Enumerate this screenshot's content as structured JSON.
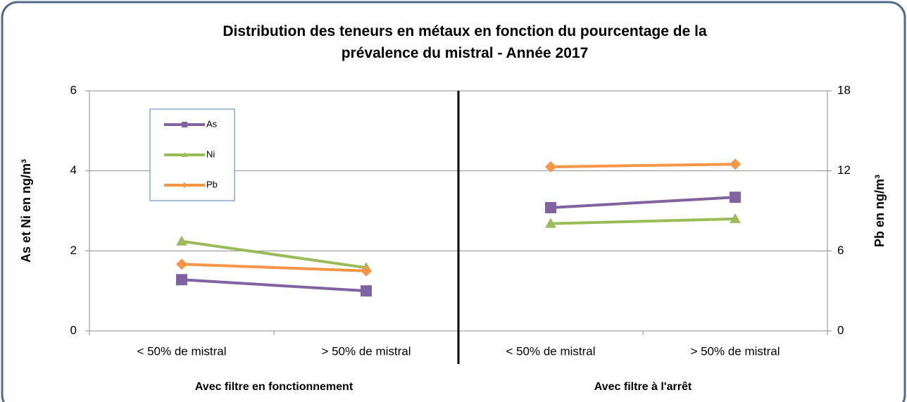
{
  "chart_data": {
    "type": "line",
    "title": "Distribution des teneurs en métaux en fonction du pourcentage de la prévalence du mistral - Année 2017",
    "groups": [
      {
        "label": "Avec filtre en fonctionnement",
        "categories": [
          "< 50% de mistral",
          "> 50% de mistral"
        ]
      },
      {
        "label": "Avec filtre à l'arrêt",
        "categories": [
          "< 50% de mistral",
          "> 50% de mistral"
        ]
      }
    ],
    "series": [
      {
        "name": "As",
        "color": "#8064a2",
        "marker": "square",
        "values": [
          1.28,
          1.0,
          3.08,
          3.34
        ]
      },
      {
        "name": "Ni",
        "color": "#9bbb59",
        "marker": "triangle",
        "values": [
          2.24,
          1.58,
          2.68,
          2.8
        ]
      },
      {
        "name": "Pb",
        "color": "#f79646",
        "marker": "diamond",
        "axis": "y2",
        "values": [
          5.0,
          4.5,
          12.3,
          12.5
        ]
      }
    ],
    "ylabel": "As et Ni en ng/m³",
    "y2label": "Pb en ng/m³",
    "ylim": [
      0,
      6
    ],
    "yticks": [
      0,
      2,
      4,
      6
    ],
    "y2lim": [
      0,
      18
    ],
    "y2ticks": [
      0,
      6,
      12,
      18
    ],
    "grid": true,
    "legend": "upper left"
  }
}
